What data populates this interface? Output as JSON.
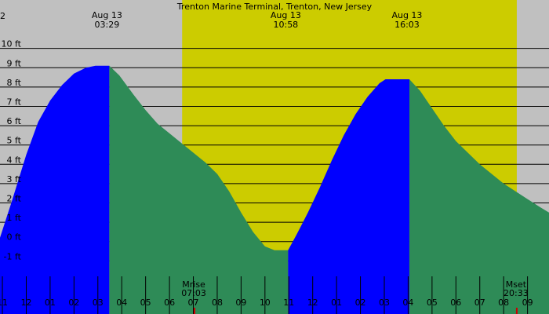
{
  "chart_data": {
    "type": "area",
    "title": "Trenton Marine Terminal, Trenton, New Jersey",
    "y_unit": "ft",
    "ylim": [
      -1.8,
      10.8
    ],
    "y_ticks": [
      -1,
      0,
      1,
      2,
      3,
      4,
      5,
      6,
      7,
      8,
      9,
      10
    ],
    "y_tick_labels": [
      "-1 ft",
      "0 ft",
      "1 ft",
      "2 ft",
      "3 ft",
      "4 ft",
      "5 ft",
      "6 ft",
      "7 ft",
      "8 ft",
      "9 ft",
      "10 ft"
    ],
    "x_unit": "hour",
    "xlim": [
      22.9,
      45.9
    ],
    "x_ticks": [
      23,
      24,
      25,
      26,
      27,
      28,
      29,
      30,
      31,
      32,
      33,
      34,
      35,
      36,
      37,
      38,
      39,
      40,
      41,
      42,
      43,
      44,
      45
    ],
    "x_tick_labels": [
      "11",
      "12",
      "01",
      "02",
      "03",
      "04",
      "05",
      "06",
      "07",
      "08",
      "09",
      "10",
      "11",
      "12",
      "01",
      "02",
      "03",
      "04",
      "05",
      "06",
      "07",
      "08",
      "09"
    ],
    "daylight": [
      30.53,
      44.55
    ],
    "daylight_color": "#cccc00",
    "night_color": "#c0c0c0",
    "rising_color": "#0000ff",
    "falling_color": "#2e8b57",
    "curve": [
      [
        22.9,
        0.2
      ],
      [
        23.4,
        2.1
      ],
      [
        24.0,
        4.5
      ],
      [
        24.5,
        6.2
      ],
      [
        25.0,
        7.3
      ],
      [
        25.5,
        8.1
      ],
      [
        26.0,
        8.7
      ],
      [
        26.5,
        9.0
      ],
      [
        26.9,
        9.1
      ],
      [
        27.48,
        9.1
      ],
      [
        27.9,
        8.6
      ],
      [
        28.5,
        7.6
      ],
      [
        29.0,
        6.8
      ],
      [
        29.5,
        6.1
      ],
      [
        30.0,
        5.6
      ],
      [
        30.5,
        5.1
      ],
      [
        31.0,
        4.6
      ],
      [
        31.5,
        4.1
      ],
      [
        32.0,
        3.5
      ],
      [
        32.5,
        2.6
      ],
      [
        33.0,
        1.5
      ],
      [
        33.5,
        0.5
      ],
      [
        34.0,
        -0.25
      ],
      [
        34.4,
        -0.45
      ],
      [
        34.97,
        -0.45
      ],
      [
        35.3,
        0.3
      ],
      [
        35.8,
        1.5
      ],
      [
        36.3,
        2.8
      ],
      [
        36.8,
        4.2
      ],
      [
        37.3,
        5.5
      ],
      [
        37.8,
        6.6
      ],
      [
        38.3,
        7.5
      ],
      [
        38.8,
        8.2
      ],
      [
        39.05,
        8.4
      ],
      [
        40.05,
        8.4
      ],
      [
        40.5,
        7.8
      ],
      [
        41.0,
        6.9
      ],
      [
        41.5,
        6.0
      ],
      [
        42.0,
        5.2
      ],
      [
        42.5,
        4.6
      ],
      [
        43.0,
        4.0
      ],
      [
        43.5,
        3.5
      ],
      [
        44.0,
        3.0
      ],
      [
        44.5,
        2.6
      ],
      [
        45.0,
        2.2
      ],
      [
        45.5,
        1.8
      ],
      [
        45.9,
        1.5
      ]
    ],
    "tides": [
      {
        "type": "high",
        "date": "Aug 13",
        "time": "03:29",
        "x": 27.48,
        "value": 9.1
      },
      {
        "type": "low",
        "date": "Aug 13",
        "time": "10:58",
        "x": 34.97,
        "value": -0.45
      },
      {
        "type": "high",
        "date": "Aug 13",
        "time": "16:03",
        "x": 40.05,
        "value": 8.4
      }
    ],
    "moon_events": [
      {
        "label": "Mrise",
        "time": "07:03",
        "x": 31.05
      },
      {
        "label": "Mset",
        "time": "20:33",
        "x": 44.55
      }
    ],
    "left_edge_label": "2"
  }
}
